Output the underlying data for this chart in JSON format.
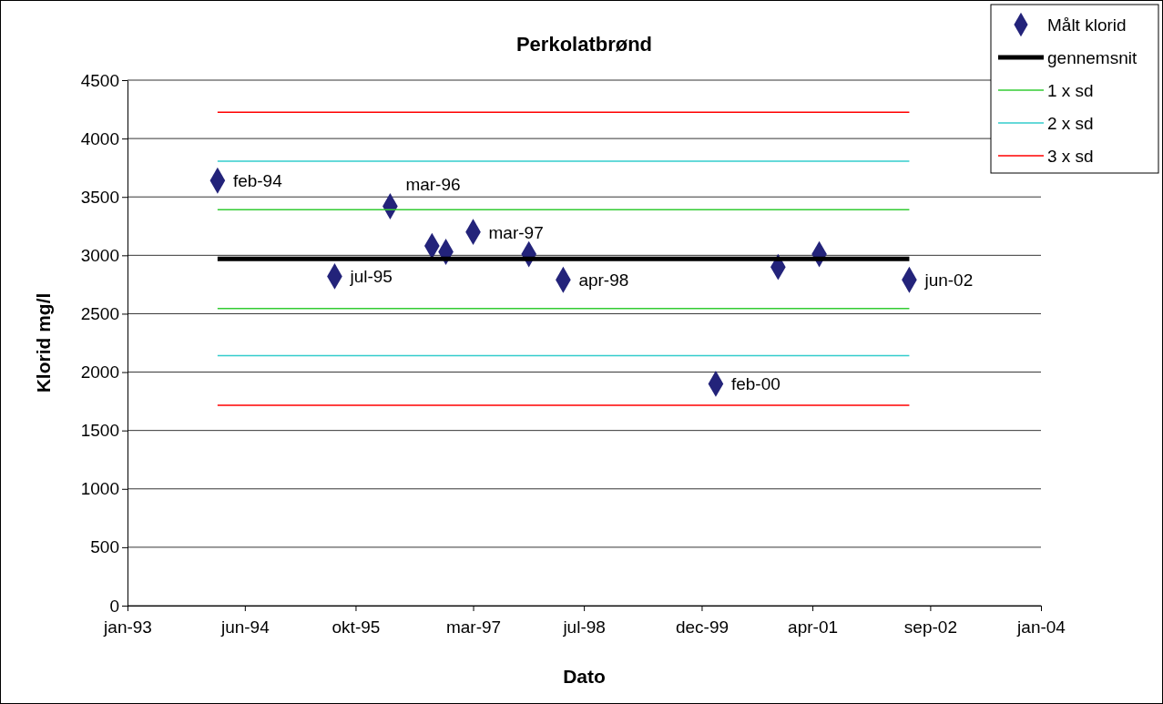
{
  "chart_data": {
    "type": "scatter",
    "title": "Perkolatbrønd",
    "xlabel": "Dato",
    "ylabel": "Klorid mg/l",
    "xlim": [
      "1993-01",
      "2004-01"
    ],
    "xticks": [
      {
        "value": "1993-01",
        "label": "jan-93"
      },
      {
        "value": "1994-06",
        "label": "jun-94"
      },
      {
        "value": "1995-10",
        "label": "okt-95"
      },
      {
        "value": "1997-03",
        "label": "mar-97"
      },
      {
        "value": "1998-07",
        "label": "jul-98"
      },
      {
        "value": "1999-12",
        "label": "dec-99"
      },
      {
        "value": "2001-04",
        "label": "apr-01"
      },
      {
        "value": "2002-09",
        "label": "sep-02"
      },
      {
        "value": "2004-01",
        "label": "jan-04"
      }
    ],
    "ylim": [
      0,
      4500
    ],
    "yticks": [
      0,
      500,
      1000,
      1500,
      2000,
      2500,
      3000,
      3500,
      4000,
      4500
    ],
    "grid": "y",
    "legend": "top right",
    "series": [
      {
        "name": "Målt klorid",
        "marker": "diamond",
        "color": "#23237a",
        "x": [
          "1994-02",
          "1995-07",
          "1996-03",
          "1996-09",
          "1996-11",
          "1997-03",
          "1997-11",
          "1998-04",
          "2000-02",
          "2000-11",
          "2001-05",
          "2002-06"
        ],
        "values": [
          3640,
          2820,
          3420,
          3080,
          3030,
          3200,
          3010,
          2790,
          1900,
          2900,
          3010,
          2790
        ],
        "value_labels": [
          "feb-94",
          "jul-95",
          "mar-96",
          null,
          null,
          "mar-97",
          null,
          "apr-98",
          "feb-00",
          null,
          null,
          "jun-02"
        ]
      },
      {
        "name": "gennemsnit",
        "type": "line",
        "color": "#000000",
        "x": [
          "1994-02",
          "2002-06"
        ],
        "values": [
          2970,
          2970
        ]
      },
      {
        "name": "1 x sd",
        "type": "line",
        "color": "#33cc33",
        "x": [
          "1994-02",
          "2002-06"
        ],
        "values": [
          3390,
          3390
        ]
      },
      {
        "name": "2 x sd",
        "type": "line",
        "color": "#33cccc",
        "x": [
          "1994-02",
          "2002-06"
        ],
        "values": [
          3805,
          3805
        ]
      },
      {
        "name": "3 x sd",
        "type": "line",
        "color": "#ff0000",
        "x": [
          "1994-02",
          "2002-06"
        ],
        "values": [
          4225,
          4225
        ]
      },
      {
        "type": "line",
        "color": "#33cc33",
        "x": [
          "1994-02",
          "2002-06"
        ],
        "values": [
          2545,
          2545
        ]
      },
      {
        "type": "line",
        "color": "#33cccc",
        "x": [
          "1994-02",
          "2002-06"
        ],
        "values": [
          2140,
          2140
        ]
      },
      {
        "type": "line",
        "color": "#ff0000",
        "x": [
          "1994-02",
          "2002-06"
        ],
        "values": [
          1715,
          1715
        ]
      }
    ]
  }
}
